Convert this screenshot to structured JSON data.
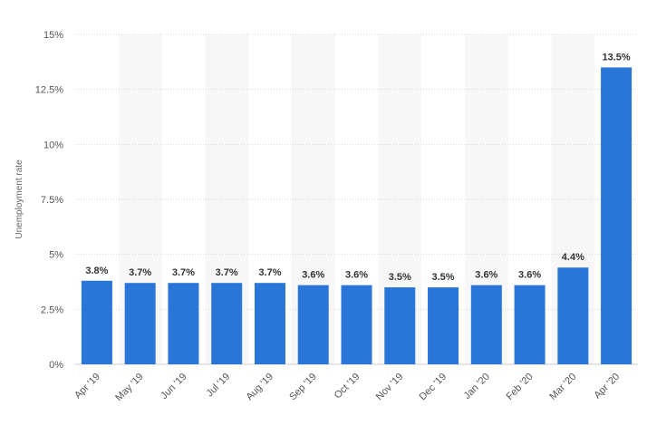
{
  "chart_data": {
    "type": "bar",
    "ylabel": "Unemployment rate",
    "categories": [
      "Apr '19",
      "May '19",
      "Jun '19",
      "Jul '19",
      "Aug '19",
      "Sep '19",
      "Oct '19",
      "Nov '19",
      "Dec '19",
      "Jan '20",
      "Feb '20",
      "Mar '20",
      "Apr '20"
    ],
    "values": [
      3.8,
      3.7,
      3.7,
      3.7,
      3.7,
      3.6,
      3.6,
      3.5,
      3.5,
      3.6,
      3.6,
      4.4,
      13.5
    ],
    "data_labels": [
      "3.8%",
      "3.7%",
      "3.7%",
      "3.7%",
      "3.7%",
      "3.6%",
      "3.6%",
      "3.5%",
      "3.5%",
      "3.6%",
      "3.6%",
      "4.4%",
      "13.5%"
    ],
    "ylim": [
      0,
      15
    ],
    "yticks": [
      0,
      2.5,
      5,
      7.5,
      10,
      12.5,
      15
    ],
    "ytick_labels": [
      "0%",
      "2.5%",
      "5%",
      "7.5%",
      "10%",
      "12.5%",
      "15%"
    ],
    "grid": true,
    "bar_color": "#2a75d8",
    "band_color": "#f7f7f7"
  }
}
